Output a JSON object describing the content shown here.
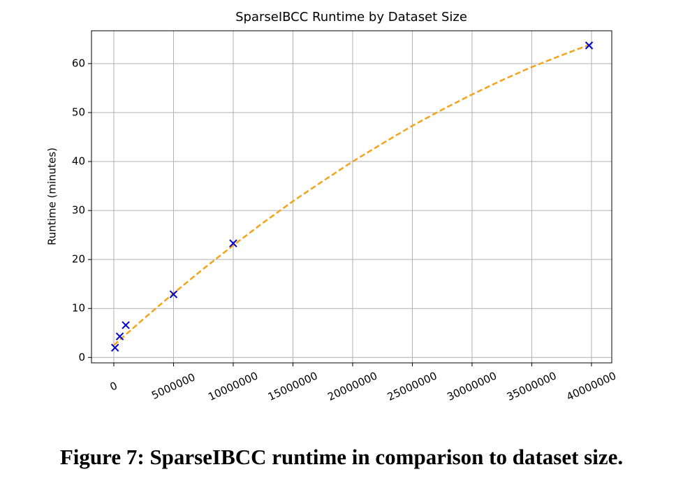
{
  "chart_data": {
    "type": "scatter",
    "title": "SparseIBCC Runtime by Dataset Size",
    "ylabel": "Runtime (minutes)",
    "series": [
      {
        "type": "scatter",
        "marker": "x",
        "color": "#0000cc",
        "x": [
          100000,
          500000,
          1000000,
          5000000,
          10000000,
          39800000
        ],
        "values": [
          2.0,
          4.3,
          6.6,
          12.9,
          23.3,
          63.7
        ]
      },
      {
        "type": "line",
        "dashed": true,
        "color": "#f5a31a",
        "x": [
          0,
          2500000,
          5000000,
          7500000,
          10000000,
          12500000,
          15000000,
          17500000,
          20000000,
          22500000,
          25000000,
          27500000,
          30000000,
          32500000,
          35000000,
          37500000,
          40000000
        ],
        "values": [
          2.5,
          7.9,
          13.1,
          18.1,
          22.9,
          27.5,
          31.9,
          36.0,
          40.0,
          43.7,
          47.3,
          50.6,
          53.7,
          56.6,
          59.3,
          61.7,
          64.0
        ]
      }
    ],
    "xlim": [
      -1870000,
      41700000
    ],
    "ylim": [
      -1.1,
      66.7
    ],
    "xticks": [
      0,
      5000000,
      10000000,
      15000000,
      20000000,
      25000000,
      30000000,
      35000000,
      40000000
    ],
    "yticks": [
      0,
      10,
      20,
      30,
      40,
      50,
      60
    ],
    "grid": true
  },
  "caption": "Figure 7: SparseIBCC runtime in comparison to dataset size."
}
